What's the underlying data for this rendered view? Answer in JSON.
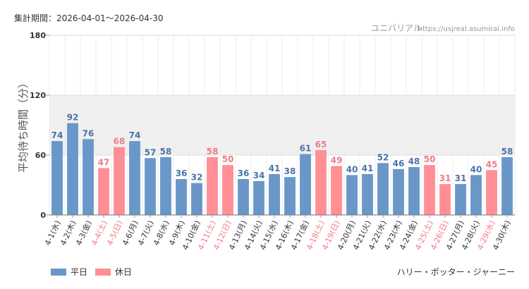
{
  "header": {
    "period": "集計期間：2026-04-01～2026-04-30",
    "brand": "ユニバリアル",
    "url": "https://usjreal.asumirai.info"
  },
  "chart_data": {
    "type": "bar",
    "ylabel": "平均待ち時間（分）",
    "ylim": [
      0,
      180
    ],
    "yticks": [
      0,
      60,
      120,
      180
    ],
    "grid": true,
    "categories": [
      "4-1(水)",
      "4-2(木)",
      "4-3(金)",
      "4-4(土)",
      "4-5(日)",
      "4-6(月)",
      "4-7(火)",
      "4-8(水)",
      "4-9(木)",
      "4-10(金)",
      "4-11(土)",
      "4-12(日)",
      "4-13(月)",
      "4-14(火)",
      "4-15(水)",
      "4-16(木)",
      "4-17(金)",
      "4-18(土)",
      "4-19(日)",
      "4-20(月)",
      "4-21(火)",
      "4-22(水)",
      "4-23(木)",
      "4-24(金)",
      "4-25(土)",
      "4-26(日)",
      "4-27(月)",
      "4-28(火)",
      "4-29(水)",
      "4-30(木)"
    ],
    "values": [
      74,
      92,
      76,
      47,
      68,
      74,
      57,
      58,
      36,
      32,
      58,
      50,
      36,
      34,
      41,
      38,
      61,
      65,
      49,
      40,
      41,
      52,
      46,
      48,
      50,
      31,
      31,
      40,
      45,
      58
    ],
    "day_type": [
      "weekday",
      "weekday",
      "weekday",
      "holiday",
      "holiday",
      "weekday",
      "weekday",
      "weekday",
      "weekday",
      "weekday",
      "holiday",
      "holiday",
      "weekday",
      "weekday",
      "weekday",
      "weekday",
      "weekday",
      "holiday",
      "holiday",
      "weekday",
      "weekday",
      "weekday",
      "weekday",
      "weekday",
      "holiday",
      "holiday",
      "weekday",
      "weekday",
      "holiday",
      "weekday"
    ],
    "legend": [
      {
        "key": "weekday",
        "name": "平日",
        "color": "#6a97c8"
      },
      {
        "key": "holiday",
        "name": "休日",
        "color": "#ff8f95"
      }
    ],
    "label_colors": {
      "weekday": "#4a73a8",
      "holiday": "#f07a82"
    },
    "tick_colors": {
      "weekday": "#333333",
      "holiday": "#f07a82"
    },
    "band_color": "#f0f0f0",
    "attraction": "ハリー・ポッター・ジャーニー"
  }
}
